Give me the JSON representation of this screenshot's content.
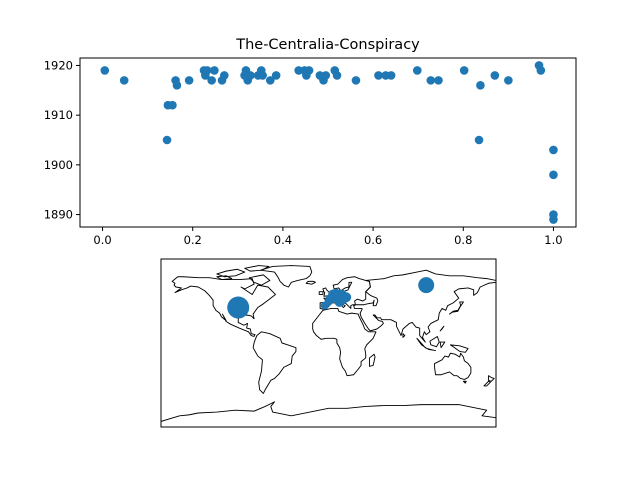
{
  "chart_data": [
    {
      "type": "scatter",
      "title": "The-Centralia-Conspiracy",
      "xlabel": "",
      "ylabel": "",
      "xlim": [
        -0.05,
        1.05
      ],
      "ylim": [
        1887.5,
        1921.5
      ],
      "x_ticks": [
        0.0,
        0.2,
        0.4,
        0.6,
        0.8,
        1.0
      ],
      "x_tick_labels": [
        "0.0",
        "0.2",
        "0.4",
        "0.6",
        "0.8",
        "1.0"
      ],
      "y_ticks": [
        1890,
        1900,
        1910,
        1920
      ],
      "y_tick_labels": [
        "1890",
        "1900",
        "1910",
        "1920"
      ],
      "grid": false,
      "marker_color": "#1f77b4",
      "points": [
        [
          0.005,
          1919
        ],
        [
          0.048,
          1917
        ],
        [
          0.143,
          1905
        ],
        [
          0.145,
          1912
        ],
        [
          0.155,
          1912
        ],
        [
          0.162,
          1917
        ],
        [
          0.165,
          1916
        ],
        [
          0.192,
          1917
        ],
        [
          0.225,
          1919
        ],
        [
          0.228,
          1918
        ],
        [
          0.232,
          1919
        ],
        [
          0.242,
          1917
        ],
        [
          0.248,
          1919
        ],
        [
          0.265,
          1917
        ],
        [
          0.27,
          1918
        ],
        [
          0.315,
          1918
        ],
        [
          0.318,
          1919
        ],
        [
          0.322,
          1917
        ],
        [
          0.328,
          1918
        ],
        [
          0.345,
          1918
        ],
        [
          0.352,
          1919
        ],
        [
          0.355,
          1918
        ],
        [
          0.372,
          1917
        ],
        [
          0.385,
          1918
        ],
        [
          0.435,
          1919
        ],
        [
          0.448,
          1919
        ],
        [
          0.452,
          1918
        ],
        [
          0.458,
          1919
        ],
        [
          0.482,
          1918
        ],
        [
          0.49,
          1917
        ],
        [
          0.495,
          1918
        ],
        [
          0.515,
          1919
        ],
        [
          0.52,
          1918
        ],
        [
          0.562,
          1917
        ],
        [
          0.612,
          1918
        ],
        [
          0.628,
          1918
        ],
        [
          0.64,
          1918
        ],
        [
          0.698,
          1919
        ],
        [
          0.728,
          1917
        ],
        [
          0.745,
          1917
        ],
        [
          0.802,
          1919
        ],
        [
          0.835,
          1905
        ],
        [
          0.838,
          1916
        ],
        [
          0.87,
          1918
        ],
        [
          0.9,
          1917
        ],
        [
          0.968,
          1920
        ],
        [
          0.972,
          1919
        ],
        [
          1.0,
          1903
        ],
        [
          1.0,
          1898
        ],
        [
          1.0,
          1890
        ],
        [
          1.0,
          1889
        ]
      ]
    },
    {
      "type": "map",
      "projection": "plate-carree",
      "lon_range": [
        -180,
        180
      ],
      "lat_range": [
        -90,
        90
      ],
      "marker_color": "#1f77b4",
      "coastline_color": "#000000",
      "markers": [
        {
          "lon": -97,
          "lat": 38,
          "size": 11
        },
        {
          "lon": 105,
          "lat": 62,
          "size": 8
        },
        {
          "lon": 10,
          "lat": 50,
          "size": 6
        },
        {
          "lon": 14,
          "lat": 52,
          "size": 5
        },
        {
          "lon": 5,
          "lat": 52,
          "size": 5
        },
        {
          "lon": 2,
          "lat": 47,
          "size": 5
        },
        {
          "lon": 12,
          "lat": 44,
          "size": 5
        },
        {
          "lon": 19,
          "lat": 49,
          "size": 5
        },
        {
          "lon": 0,
          "lat": 44,
          "size": 4
        },
        {
          "lon": -4,
          "lat": 40,
          "size": 4
        },
        {
          "lon": 8,
          "lat": 54,
          "size": 4
        },
        {
          "lon": 16,
          "lat": 46,
          "size": 4
        }
      ]
    }
  ]
}
